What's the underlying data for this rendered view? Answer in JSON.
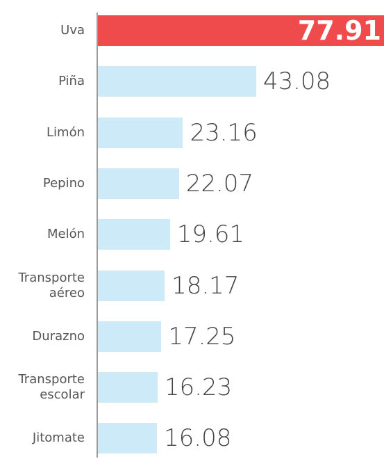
{
  "chart_data": {
    "type": "bar",
    "orientation": "horizontal",
    "categories": [
      "Uva",
      "Piña",
      "Limón",
      "Pepino",
      "Melón",
      "Transporte aéreo",
      "Durazno",
      "Transporte escolar",
      "Jitomate"
    ],
    "values": [
      77.91,
      43.08,
      23.16,
      22.07,
      19.61,
      18.17,
      17.25,
      16.23,
      16.08
    ],
    "colors": [
      "#f04b4c",
      "#cdeaf8",
      "#cdeaf8",
      "#cdeaf8",
      "#cdeaf8",
      "#cdeaf8",
      "#cdeaf8",
      "#cdeaf8",
      "#cdeaf8"
    ]
  }
}
